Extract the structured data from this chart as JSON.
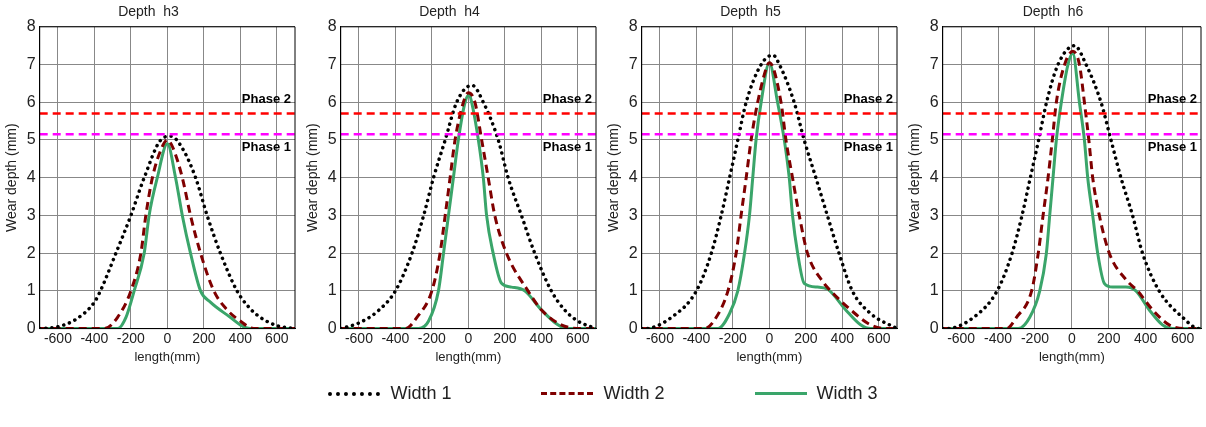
{
  "chart_data": [
    {
      "type": "line",
      "title": "Depth  h3",
      "xlabel": "length(mm)",
      "ylabel": "Wear depth (mm)",
      "xlim": [
        -700,
        700
      ],
      "xticks": [
        -600,
        -400,
        -200,
        0,
        200,
        400,
        600
      ],
      "ylim": [
        0,
        8
      ],
      "yticks": [
        0,
        1,
        2,
        3,
        4,
        5,
        6,
        7,
        8
      ],
      "grid": true,
      "legend": "bottom",
      "ref_lines": [
        {
          "axis": "y",
          "value": 5.7,
          "label": "Phase 2",
          "color": "#ff0000",
          "line_style": "dashed"
        },
        {
          "axis": "y",
          "value": 5.15,
          "label": "Phase 1",
          "color": "#ff00ff",
          "line_style": "dashed"
        }
      ],
      "series": [
        {
          "name": "Width 1",
          "color": "#000000",
          "line_style": "dotted",
          "x": [
            -700,
            -600,
            -500,
            -400,
            -367,
            -282,
            -200,
            -127,
            -36,
            20,
            80,
            155,
            218,
            291,
            382,
            450,
            509,
            600,
            700
          ],
          "values": [
            0,
            0.05,
            0.25,
            0.7,
            1,
            2,
            3,
            4,
            5,
            5.1,
            4.8,
            4,
            3,
            2,
            1,
            0.55,
            0.3,
            0.08,
            0
          ]
        },
        {
          "name": "Width 2",
          "color": "#7f0000",
          "line_style": "dashed",
          "x": [
            -700,
            -345,
            -273,
            -200,
            -145,
            -118,
            -82,
            -30,
            0,
            30,
            82,
            127,
            182,
            255,
            327,
            400,
            473,
            700
          ],
          "values": [
            0,
            0,
            0.3,
            1,
            2,
            3,
            4,
            4.8,
            5,
            4.8,
            4,
            3,
            2,
            1,
            0.5,
            0.2,
            0,
            0
          ]
        },
        {
          "name": "Width 3",
          "color": "#3aa56a",
          "line_style": "solid",
          "x": [
            -700,
            -273,
            -227,
            -182,
            -127,
            -100,
            -55,
            0,
            45,
            82,
            127,
            182,
            236,
            345,
            400,
            455,
            700
          ],
          "values": [
            0,
            0,
            0.3,
            1,
            2,
            3,
            4,
            4.9,
            4,
            3,
            2,
            1,
            0.7,
            0.3,
            0.1,
            0,
            0
          ]
        }
      ]
    },
    {
      "type": "line",
      "title": "Depth  h4",
      "xlabel": "length(mm)",
      "ylabel": "Wear depth (mm)",
      "xlim": [
        -700,
        700
      ],
      "xticks": [
        -600,
        -400,
        -200,
        0,
        200,
        400,
        600
      ],
      "ylim": [
        0,
        8
      ],
      "yticks": [
        0,
        1,
        2,
        3,
        4,
        5,
        6,
        7,
        8
      ],
      "grid": true,
      "ref_lines": [
        {
          "axis": "y",
          "value": 5.7,
          "label": "Phase 2",
          "color": "#ff0000",
          "line_style": "dashed"
        },
        {
          "axis": "y",
          "value": 5.15,
          "label": "Phase 1",
          "color": "#ff00ff",
          "line_style": "dashed"
        }
      ],
      "series": [
        {
          "color": "#000000",
          "line_style": "dotted",
          "x": [
            -700,
            -600,
            -500,
            -400,
            -309,
            -245,
            -191,
            -127,
            -64,
            20,
            82,
            164,
            218,
            291,
            364,
            455,
            527,
            600,
            700
          ],
          "values": [
            0,
            0.15,
            0.45,
            1,
            2,
            3,
            4,
            5,
            6,
            6.45,
            6,
            5,
            4,
            3,
            2,
            1,
            0.5,
            0.2,
            0
          ]
        },
        {
          "color": "#7f0000",
          "line_style": "dashed",
          "x": [
            -700,
            -345,
            -282,
            -200,
            -155,
            -127,
            -100,
            -73,
            -27,
            0,
            36,
            73,
            109,
            145,
            209,
            327,
            400,
            509,
            618,
            700
          ],
          "values": [
            0,
            0,
            0.3,
            1,
            2,
            3,
            4,
            5,
            6,
            6.25,
            6,
            5,
            4,
            3,
            2,
            1,
            0.5,
            0.1,
            0,
            0
          ]
        },
        {
          "color": "#3aa56a",
          "line_style": "solid",
          "x": [
            -700,
            -273,
            -218,
            -164,
            -136,
            -109,
            -82,
            -55,
            -18,
            5,
            18,
            55,
            82,
            100,
            136,
            182,
            236,
            309,
            400,
            491,
            545,
            700
          ],
          "values": [
            0,
            0,
            0.2,
            1,
            2,
            3,
            4,
            5,
            6,
            6.2,
            6,
            5,
            4,
            3,
            2,
            1.2,
            1.1,
            1,
            0.5,
            0.1,
            0,
            0
          ]
        }
      ]
    },
    {
      "type": "line",
      "title": "Depth  h5",
      "xlabel": "length(mm)",
      "ylabel": "Wear depth (mm)",
      "xlim": [
        -700,
        700
      ],
      "xticks": [
        -600,
        -400,
        -200,
        0,
        200,
        400,
        600
      ],
      "ylim": [
        0,
        8
      ],
      "yticks": [
        0,
        1,
        2,
        3,
        4,
        5,
        6,
        7,
        8
      ],
      "grid": true,
      "ref_lines": [
        {
          "axis": "y",
          "value": 5.7,
          "label": "Phase 2",
          "color": "#ff0000",
          "line_style": "dashed"
        },
        {
          "axis": "y",
          "value": 5.15,
          "label": "Phase 1",
          "color": "#ff00ff",
          "line_style": "dashed"
        }
      ],
      "series": [
        {
          "color": "#000000",
          "line_style": "dotted",
          "x": [
            -700,
            -682,
            -536,
            -400,
            -318,
            -264,
            -218,
            -173,
            -127,
            -45,
            20,
            55,
            136,
            191,
            255,
            318,
            382,
            455,
            555,
            700
          ],
          "values": [
            0,
            0,
            0.3,
            1,
            2,
            3,
            4,
            5,
            6,
            7,
            7.25,
            7,
            6,
            5,
            4,
            3,
            2,
            1,
            0.4,
            0
          ]
        },
        {
          "color": "#7f0000",
          "line_style": "dashed",
          "x": [
            -700,
            -355,
            -291,
            -227,
            -182,
            -155,
            -127,
            -100,
            -64,
            -9,
            0,
            64,
            91,
            127,
            164,
            209,
            300,
            336,
            445,
            555,
            645,
            700
          ],
          "values": [
            0,
            0,
            0.3,
            1,
            2,
            3,
            4,
            5,
            6,
            7,
            7.05,
            6,
            5,
            4,
            3,
            2,
            1.2,
            1,
            0.5,
            0.1,
            0,
            0
          ]
        },
        {
          "color": "#3aa56a",
          "line_style": "solid",
          "x": [
            -700,
            -282,
            -218,
            -173,
            -136,
            -109,
            -91,
            -73,
            -45,
            0,
            45,
            82,
            109,
            127,
            155,
            191,
            264,
            318,
            418,
            500,
            555,
            700
          ],
          "values": [
            0,
            0,
            0.4,
            1,
            2,
            3,
            4,
            5,
            6,
            7.05,
            6,
            5,
            4,
            3,
            2,
            1.2,
            1.1,
            1.05,
            0.5,
            0.1,
            0,
            0
          ]
        }
      ]
    },
    {
      "type": "line",
      "title": "Depth  h6",
      "xlabel": "length(mm)",
      "ylabel": "Wear depth (mm)",
      "xlim": [
        -700,
        700
      ],
      "xticks": [
        -600,
        -400,
        -200,
        0,
        200,
        400,
        600
      ],
      "ylim": [
        0,
        8
      ],
      "yticks": [
        0,
        1,
        2,
        3,
        4,
        5,
        6,
        7,
        8
      ],
      "grid": true,
      "ref_lines": [
        {
          "axis": "y",
          "value": 5.7,
          "label": "Phase 2",
          "color": "#ff0000",
          "line_style": "dashed"
        },
        {
          "axis": "y",
          "value": 5.15,
          "label": "Phase 1",
          "color": "#ff00ff",
          "line_style": "dashed"
        }
      ],
      "series": [
        {
          "color": "#000000",
          "line_style": "dotted",
          "x": [
            -700,
            -677,
            -532,
            -405,
            -324,
            -270,
            -225,
            -180,
            -137,
            -75,
            15,
            77,
            158,
            212,
            266,
            329,
            383,
            473,
            600,
            690,
            700
          ],
          "values": [
            0,
            0,
            0.3,
            1,
            2,
            3,
            4,
            5,
            6,
            7,
            7.5,
            7,
            6,
            5,
            4,
            3,
            2,
            1,
            0.3,
            0,
            0
          ]
        },
        {
          "color": "#7f0000",
          "line_style": "dashed",
          "x": [
            -700,
            -354,
            -300,
            -218,
            -182,
            -156,
            -129,
            -106,
            -84,
            -39,
            5,
            41,
            68,
            92,
            113,
            149,
            203,
            293,
            356,
            437,
            527,
            617,
            700
          ],
          "values": [
            0,
            0,
            0.3,
            1,
            2,
            3,
            4,
            5,
            6,
            7,
            7.35,
            7,
            6,
            5,
            4,
            3,
            2,
            1.3,
            1,
            0.5,
            0.1,
            0,
            0
          ]
        },
        {
          "color": "#3aa56a",
          "line_style": "solid",
          "x": [
            -700,
            -291,
            -228,
            -174,
            -138,
            -120,
            -102,
            -84,
            -57,
            -21,
            5,
            41,
            68,
            86,
            113,
            140,
            176,
            221,
            293,
            347,
            419,
            491,
            545,
            700
          ],
          "values": [
            0,
            0,
            0.3,
            1,
            2,
            3,
            4,
            5,
            6,
            7,
            7.3,
            6,
            5,
            4,
            3,
            2,
            1.2,
            1.1,
            1.1,
            1,
            0.5,
            0.1,
            0,
            0
          ]
        }
      ]
    }
  ]
}
